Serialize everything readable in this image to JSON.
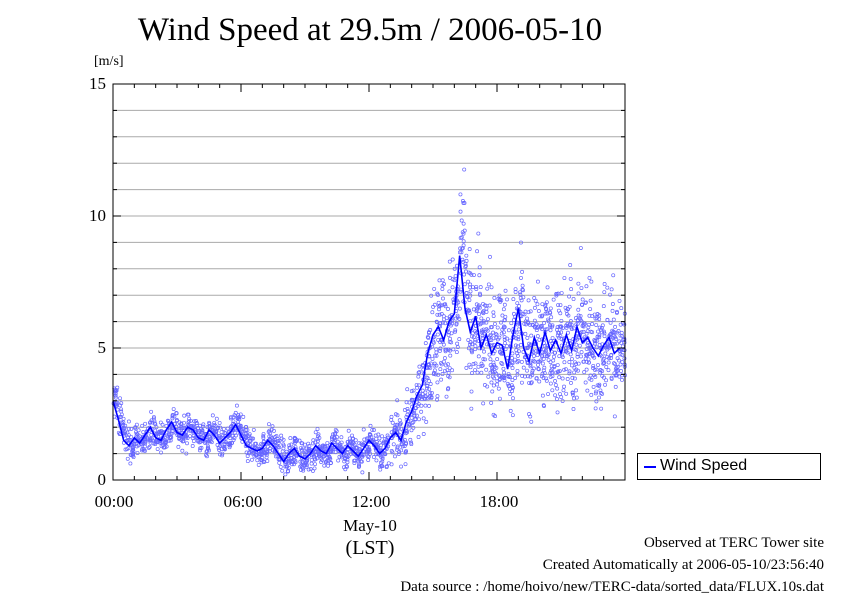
{
  "chart_data": {
    "type": "scatter",
    "title": "Wind Speed at 29.5m / 2006-05-10",
    "y_unit": "[m/s]",
    "ylim": [
      0,
      15
    ],
    "y_ticks": [
      "0",
      "5",
      "10",
      "15"
    ],
    "xlim_hours": [
      0,
      24
    ],
    "x_tick_labels": [
      "00:00",
      "06:00",
      "12:00",
      "18:00"
    ],
    "x_date_label": "May-10",
    "x_zone_label": "(LST)",
    "grid": true,
    "legend": "bottom-right",
    "series": [
      {
        "name": "Wind Speed",
        "color": "#0000ff",
        "scatter_color": "#6666ff",
        "x_hours": [
          0.0,
          0.25,
          0.5,
          0.75,
          1.0,
          1.25,
          1.5,
          1.75,
          2.0,
          2.25,
          2.5,
          2.75,
          3.0,
          3.25,
          3.5,
          3.75,
          4.0,
          4.25,
          4.5,
          4.75,
          5.0,
          5.25,
          5.5,
          5.75,
          6.0,
          6.25,
          6.5,
          6.75,
          7.0,
          7.25,
          7.5,
          7.75,
          8.0,
          8.25,
          8.5,
          8.75,
          9.0,
          9.25,
          9.5,
          9.75,
          10.0,
          10.25,
          10.5,
          10.75,
          11.0,
          11.25,
          11.5,
          11.75,
          12.0,
          12.25,
          12.5,
          12.75,
          13.0,
          13.25,
          13.5,
          13.75,
          14.0,
          14.25,
          14.5,
          14.75,
          15.0,
          15.25,
          15.5,
          15.75,
          16.0,
          16.25,
          16.5,
          16.75,
          17.0,
          17.25,
          17.5,
          17.75,
          18.0,
          18.25,
          18.5,
          18.75,
          19.0,
          19.25,
          19.5,
          19.75,
          20.0,
          20.25,
          20.5,
          20.75,
          21.0,
          21.25,
          21.5,
          21.75,
          22.0,
          22.25,
          22.5,
          22.75,
          23.0,
          23.25,
          23.5,
          23.75
        ],
        "values": [
          3.0,
          2.3,
          1.5,
          1.3,
          1.6,
          1.4,
          1.7,
          2.0,
          1.6,
          1.5,
          1.9,
          2.2,
          1.8,
          1.7,
          2.0,
          1.9,
          1.6,
          1.5,
          1.9,
          1.7,
          1.4,
          1.6,
          1.8,
          2.1,
          1.7,
          1.3,
          1.2,
          1.1,
          1.2,
          1.5,
          1.3,
          1.0,
          0.7,
          1.0,
          1.2,
          0.9,
          0.8,
          1.0,
          1.3,
          1.1,
          1.0,
          1.4,
          1.2,
          1.0,
          1.3,
          1.1,
          0.9,
          1.2,
          1.5,
          1.3,
          1.0,
          1.2,
          1.6,
          1.8,
          1.5,
          2.2,
          2.6,
          3.2,
          3.6,
          4.8,
          5.5,
          5.8,
          5.3,
          6.0,
          6.3,
          8.5,
          6.5,
          5.6,
          6.2,
          5.0,
          5.5,
          4.8,
          5.2,
          5.1,
          4.2,
          5.5,
          6.5,
          5.0,
          4.5,
          5.4,
          4.8,
          5.6,
          4.9,
          5.3,
          4.8,
          5.5,
          4.9,
          5.8,
          5.2,
          5.4,
          5.0,
          4.7,
          5.1,
          5.4,
          4.8,
          5.0
        ],
        "spread": [
          0.55,
          0.5,
          0.45,
          0.42,
          0.4,
          0.4,
          0.4,
          0.4,
          0.4,
          0.4,
          0.4,
          0.42,
          0.4,
          0.4,
          0.4,
          0.4,
          0.4,
          0.4,
          0.4,
          0.4,
          0.4,
          0.4,
          0.4,
          0.42,
          0.4,
          0.4,
          0.4,
          0.4,
          0.4,
          0.4,
          0.4,
          0.4,
          0.35,
          0.38,
          0.4,
          0.4,
          0.4,
          0.4,
          0.4,
          0.4,
          0.4,
          0.42,
          0.42,
          0.42,
          0.42,
          0.42,
          0.42,
          0.45,
          0.45,
          0.45,
          0.45,
          0.5,
          0.55,
          0.6,
          0.6,
          0.7,
          0.8,
          0.9,
          1.1,
          1.3,
          1.5,
          1.6,
          1.6,
          1.7,
          1.8,
          1.9,
          1.8,
          1.6,
          1.6,
          1.5,
          1.5,
          1.5,
          1.5,
          1.5,
          1.5,
          1.5,
          1.6,
          1.5,
          1.5,
          1.5,
          1.5,
          1.5,
          1.5,
          1.5,
          1.5,
          1.5,
          1.5,
          1.5,
          1.5,
          1.5,
          1.5,
          1.5,
          1.5,
          1.5,
          1.5,
          1.5
        ]
      }
    ]
  },
  "footer": {
    "line1": "Observed at TERC Tower site",
    "line2": "Created Automatically at 2006-05-10/23:56:40",
    "line3": "Data source : /home/hoivo/new/TERC-data/sorted_data/FLUX.10s.dat"
  }
}
